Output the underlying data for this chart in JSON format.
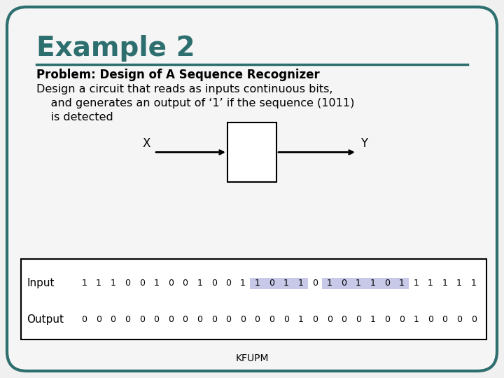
{
  "title": "Example 2",
  "title_color": "#2d6e6e",
  "subtitle": "Problem: Design of A Sequence Recognizer",
  "body_text_line1": "Design a circuit that reads as inputs continuous bits,",
  "body_text_line2": "    and generates an output of ‘1’ if the sequence (1011)",
  "body_text_line3": "    is detected",
  "bg_color": "#f0f0f0",
  "border_color": "#2d6e6e",
  "divider_color": "#2d6e6e",
  "input_label": "Input",
  "output_label": "Output",
  "input_bits": "1 1 1 0 0 1 0 0 1 0 0 1 1 0 1 1 0 1 0 1 1 0 1 1 1 1 1 1",
  "output_bits": "0 0 0 0 0 0 0 0 0 0 0 0 0 0 0 1 0 0 0 0 1 0 0 1 0 0 0 0",
  "highlight_ranges": [
    [
      12,
      15
    ],
    [
      17,
      19
    ],
    [
      20,
      22
    ]
  ],
  "highlight_color": "#c8c8e8",
  "footer": "KFUPM"
}
